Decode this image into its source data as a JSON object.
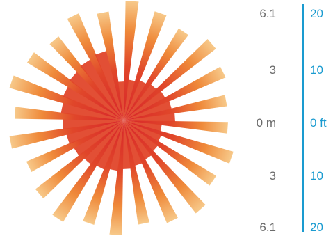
{
  "scale": {
    "rows": [
      {
        "meters": "6.1",
        "feet": "20"
      },
      {
        "meters": "3",
        "feet": "10"
      },
      {
        "meters": "0 m",
        "feet": "0 ft"
      },
      {
        "meters": "3",
        "feet": "10"
      },
      {
        "meters": "6.1",
        "feet": "20"
      }
    ]
  },
  "colors": {
    "ray_outer_light": "#f7c98a",
    "ray_outer_mid": "#ef8a3a",
    "ray_inner": "#e0462a",
    "ray_core": "#d8242a",
    "scale_line": "#1a9bd0",
    "meters_text": "#6b6b6b",
    "feet_text": "#1a9bd0"
  }
}
